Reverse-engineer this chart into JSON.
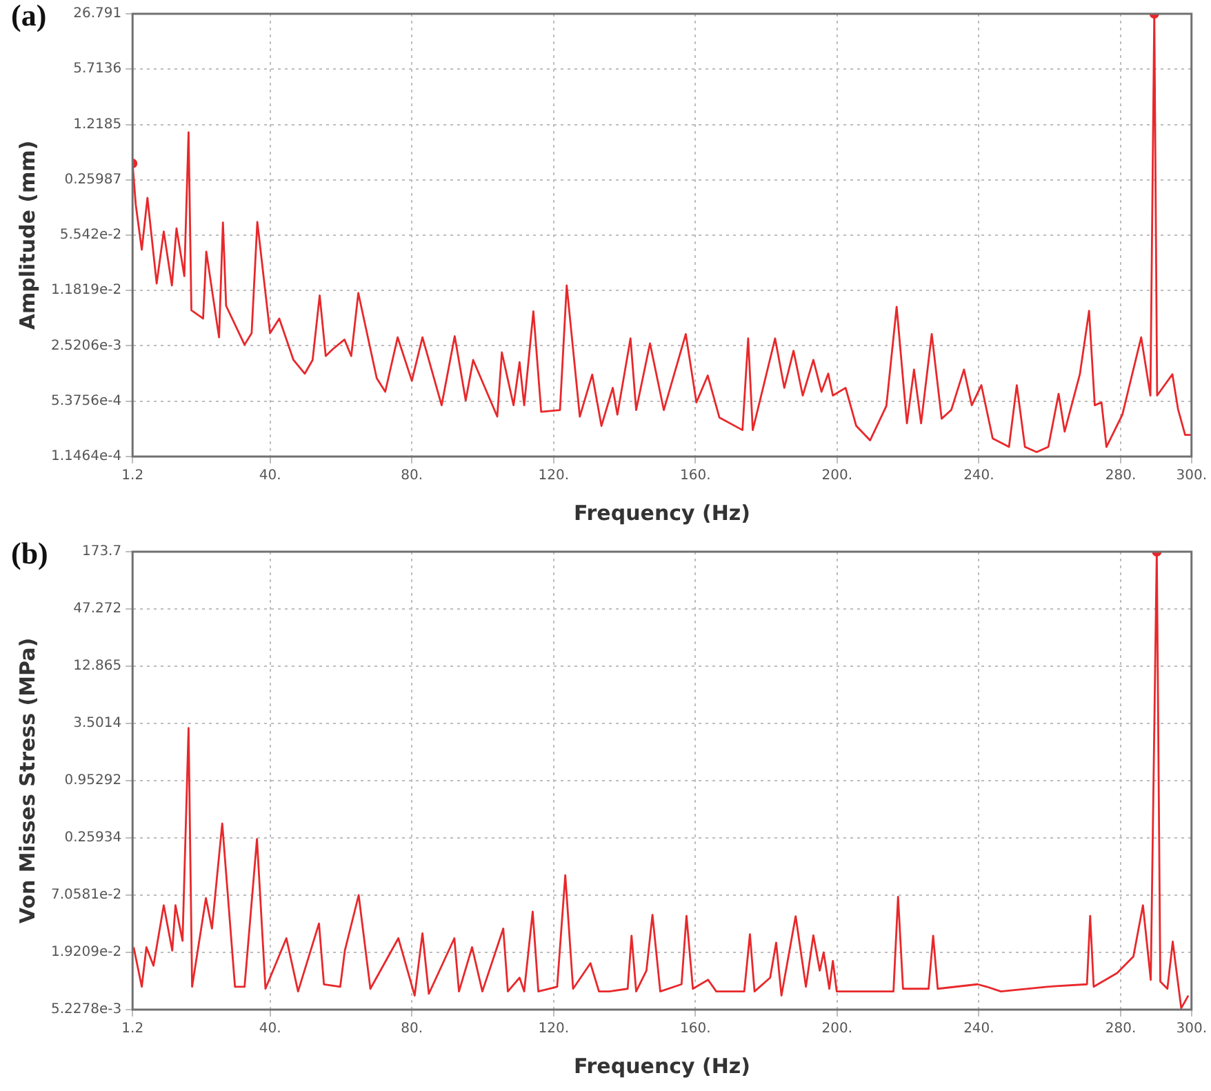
{
  "chart_data": [
    {
      "type": "line",
      "title": "(a)",
      "xlabel": "Frequency (Hz)",
      "ylabel": "Amplitude (mm)",
      "log": "y",
      "grid": true,
      "marker": "none",
      "xlim": [
        1.2,
        300
      ],
      "xticks": [
        1.2,
        {
          "value": 40,
          "label": "40."
        },
        {
          "value": 80,
          "label": "80."
        },
        {
          "value": 120,
          "label": "120."
        },
        {
          "value": 160,
          "label": "160."
        },
        {
          "value": 200,
          "label": "200."
        },
        {
          "value": 240,
          "label": "240."
        },
        {
          "value": 280,
          "label": "280."
        },
        {
          "value": 300,
          "label": "300."
        }
      ],
      "ylim": [
        0.00011464,
        26.791
      ],
      "yticks": [
        {
          "value": 0.00011464,
          "label": "1.1464e-4"
        },
        {
          "value": 0.00053756,
          "label": "5.3756e-4"
        },
        {
          "value": 0.0025206,
          "label": "2.5206e-3"
        },
        {
          "value": 0.011819,
          "label": "1.1819e-2"
        },
        {
          "value": 0.05542,
          "label": "5.542e-2"
        },
        0.25987,
        1.2185,
        5.7136,
        26.791
      ],
      "series": [
        {
          "color": "#e8282b",
          "x": [
            1.2,
            2.1,
            3.8,
            5.4,
            8.0,
            10,
            12.3,
            13.6,
            15.8,
            17.0,
            17.8,
            21.1,
            22,
            25.6,
            26.7,
            27.6,
            32.8,
            34.8,
            36.4,
            40,
            42.6,
            46.6,
            49.8,
            52,
            54,
            55.7,
            57.7,
            61,
            62.9,
            64.9,
            70.1,
            72.5,
            76,
            80,
            83,
            88.4,
            92.1,
            95.2,
            97.3,
            104.1,
            105.4,
            108.7,
            110.4,
            111.7,
            114.3,
            116.5,
            121.8,
            123.7,
            127.4,
            130.9,
            133.5,
            136.7,
            138,
            141.7,
            143.3,
            147.2,
            151.1,
            157.3,
            160.3,
            163.5,
            166.8,
            173.3,
            174.9,
            176.2,
            182.5,
            185.1,
            187.7,
            190.3,
            193.3,
            195.6,
            197.5,
            198.8,
            202.4,
            205.4,
            209.3,
            213.9,
            216.8,
            219.7,
            221.7,
            223.7,
            226.7,
            229.5,
            232.2,
            235.8,
            238,
            240.7,
            243.9,
            248.5,
            250.7,
            253,
            256.3,
            259.6,
            262.5,
            264.2,
            268.5,
            271.1,
            272.7,
            274.6,
            276,
            280.5,
            285.8,
            288.4,
            289.5,
            290.3,
            294.6,
            296.2,
            298.2,
            300
          ],
          "values": [
            0.41,
            0.13,
            0.037,
            0.157,
            0.0144,
            0.0615,
            0.0136,
            0.067,
            0.0177,
            0.98,
            0.0068,
            0.0054,
            0.035,
            0.0032,
            0.079,
            0.0077,
            0.0026,
            0.0036,
            0.08,
            0.0036,
            0.0054,
            0.0017,
            0.00116,
            0.0017,
            0.0103,
            0.0019,
            0.0023,
            0.003,
            0.0019,
            0.011,
            0.00102,
            0.0007,
            0.0032,
            0.00095,
            0.0032,
            0.00048,
            0.0033,
            0.00055,
            0.0017,
            0.00035,
            0.0021,
            0.00048,
            0.0016,
            0.00048,
            0.0066,
            0.0004,
            0.00042,
            0.0136,
            0.00035,
            0.00113,
            0.00027,
            0.00078,
            0.00037,
            0.0031,
            0.00042,
            0.0027,
            0.00042,
            0.0035,
            0.00052,
            0.0011,
            0.00034,
            0.00024,
            0.0031,
            0.00024,
            0.0031,
            0.00078,
            0.0022,
            0.00063,
            0.0017,
            0.0007,
            0.00116,
            0.00063,
            0.00078,
            0.00027,
            0.00018,
            0.00047,
            0.0075,
            0.00029,
            0.0013,
            0.00029,
            0.0035,
            0.00033,
            0.00042,
            0.0013,
            0.00048,
            0.00084,
            0.00019,
            0.00015,
            0.00084,
            0.00015,
            0.00013,
            0.00015,
            0.00066,
            0.00023,
            0.00114,
            0.0067,
            0.00048,
            0.00052,
            0.00015,
            0.00037,
            0.0032,
            0.00063,
            26.791,
            0.00063,
            0.00114,
            0.00043,
            0.00021,
            0.00021
          ]
        },
        {
          "type": "scatter",
          "marker": "circle",
          "color": "#e8282b",
          "x": [
            1.2,
            289.5
          ],
          "values": [
            0.41,
            26.791
          ]
        }
      ]
    },
    {
      "type": "line",
      "title": "(b)",
      "xlabel": "Frequency (Hz)",
      "ylabel": "Von Misses Stress (MPa)",
      "log": "y",
      "grid": true,
      "marker": "none",
      "xlim": [
        1.2,
        300
      ],
      "xticks": [
        1.2,
        {
          "value": 40,
          "label": "40."
        },
        {
          "value": 80,
          "label": "80."
        },
        {
          "value": 120,
          "label": "120."
        },
        {
          "value": 160,
          "label": "160."
        },
        {
          "value": 200,
          "label": "200."
        },
        {
          "value": 240,
          "label": "240."
        },
        {
          "value": 280,
          "label": "280."
        },
        {
          "value": 300,
          "label": "300."
        }
      ],
      "ylim": [
        0.0052278,
        173.7
      ],
      "yticks": [
        {
          "value": 0.0052278,
          "label": "5.2278e-3"
        },
        {
          "value": 0.019209,
          "label": "1.9209e-2"
        },
        {
          "value": 0.070581,
          "label": "7.0581e-2"
        },
        0.25934,
        0.95292,
        3.5014,
        12.865,
        47.272,
        173.7
      ],
      "series": [
        {
          "color": "#e8282b",
          "x": [
            1.5,
            3.8,
            5.1,
            7.1,
            10,
            12.4,
            13.3,
            15.3,
            17,
            18,
            21.9,
            23.6,
            26.5,
            30.1,
            32.8,
            36.3,
            38.7,
            44.6,
            47.9,
            53.8,
            55.2,
            59.8,
            61.1,
            65,
            68.3,
            76.2,
            80.8,
            83,
            84.8,
            92,
            93.3,
            97,
            99.9,
            105.8,
            107.1,
            110.4,
            111.7,
            114.1,
            115.7,
            121,
            123.3,
            125.5,
            130.4,
            132.8,
            135.7,
            140.9,
            142,
            143.3,
            146.2,
            147.9,
            150.1,
            156.1,
            157.5,
            159.3,
            163.6,
            165.9,
            173.8,
            175.4,
            176.7,
            181.1,
            182.8,
            184.3,
            188.3,
            191.2,
            193.3,
            195.1,
            196.2,
            197.8,
            198.8,
            199.9,
            209.3,
            215.9,
            217.2,
            218.6,
            225.8,
            227.1,
            228.4,
            239.6,
            242.2,
            246.2,
            259.3,
            270.5,
            271.4,
            272.4,
            279,
            283.6,
            286.3,
            288.5,
            290.2,
            291.2,
            293.2,
            294.7,
            297.1,
            299.1
          ],
          "values": [
            0.0216,
            0.0088,
            0.0216,
            0.0142,
            0.056,
            0.02,
            0.056,
            0.025,
            3.15,
            0.0088,
            0.066,
            0.033,
            0.36,
            0.0088,
            0.0088,
            0.253,
            0.0084,
            0.0265,
            0.0079,
            0.037,
            0.0093,
            0.0088,
            0.02,
            0.0706,
            0.0084,
            0.0265,
            0.0072,
            0.0296,
            0.0075,
            0.0265,
            0.0079,
            0.0216,
            0.0079,
            0.033,
            0.0079,
            0.0108,
            0.0079,
            0.0486,
            0.0079,
            0.0088,
            0.111,
            0.0084,
            0.015,
            0.0079,
            0.0079,
            0.0084,
            0.028,
            0.0079,
            0.0127,
            0.045,
            0.0079,
            0.0093,
            0.044,
            0.0084,
            0.0103,
            0.0079,
            0.0079,
            0.029,
            0.0079,
            0.0108,
            0.024,
            0.0072,
            0.0437,
            0.0088,
            0.0283,
            0.0127,
            0.0192,
            0.0084,
            0.0158,
            0.0079,
            0.0079,
            0.0079,
            0.068,
            0.0084,
            0.0084,
            0.028,
            0.0084,
            0.0093,
            0.0088,
            0.0079,
            0.0088,
            0.0093,
            0.044,
            0.0088,
            0.012,
            0.0175,
            0.056,
            0.0103,
            173.7,
            0.0099,
            0.0084,
            0.0245,
            0.0054,
            0.0072
          ]
        },
        {
          "type": "scatter",
          "marker": "circle",
          "color": "#e8282b",
          "x": [
            290.2
          ],
          "values": [
            173.7
          ]
        }
      ]
    }
  ]
}
